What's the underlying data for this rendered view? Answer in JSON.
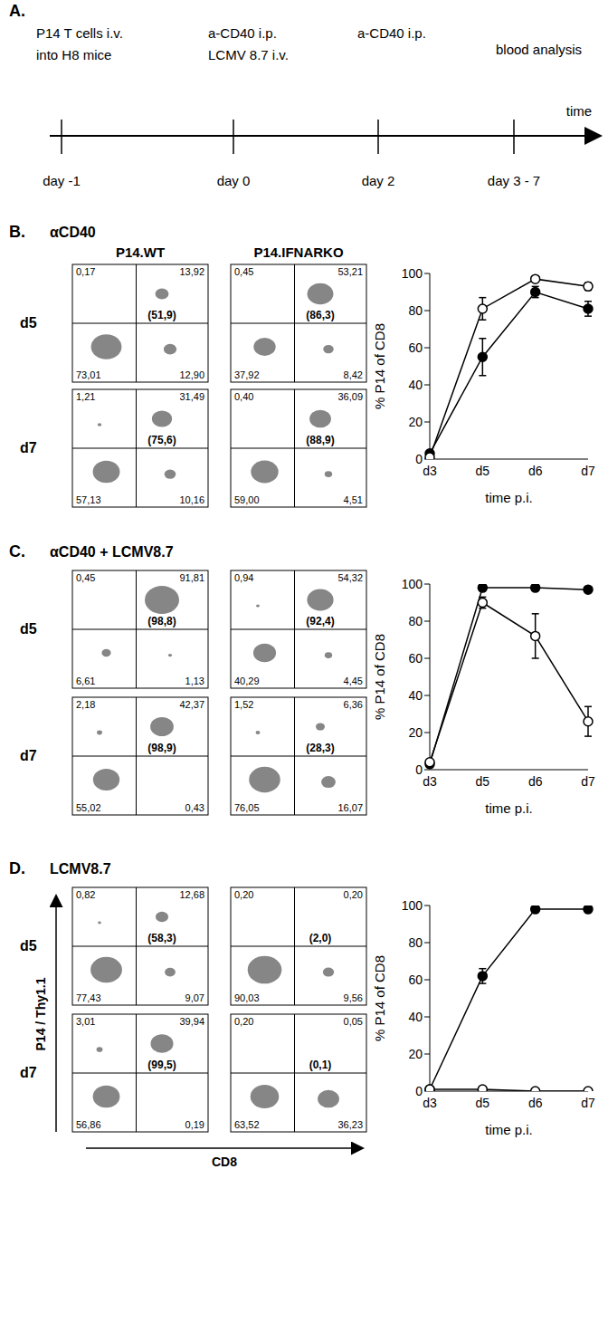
{
  "timeline": {
    "letter": "A.",
    "events": [
      {
        "lines": [
          "P14 T cells i.v.",
          "into H8 mice"
        ],
        "day": "day -1"
      },
      {
        "lines": [
          "a-CD40  i.p.",
          "LCMV 8.7 i.v."
        ],
        "day": "day 0"
      },
      {
        "lines": [
          "a-CD40 i.p."
        ],
        "day": "day 2"
      },
      {
        "lines": [
          "blood analysis"
        ],
        "day": "day 3 - 7"
      }
    ],
    "axis_label": "time"
  },
  "dot_plot_axes": {
    "y": "P14 / Thy1.1",
    "x": "CD8"
  },
  "flow_panels": [
    {
      "letter": "B.",
      "title": "αCD40",
      "column_headers": [
        "P14.WT",
        "P14.IFNARKO"
      ],
      "rows": [
        {
          "label": "d5",
          "plots": [
            {
              "quadrants": [
                {
                  "value": 0.17,
                  "label": "0,17"
                },
                {
                  "value": 13.92,
                  "label": "13,92"
                },
                {
                  "value": 73.01,
                  "label": "73,01"
                },
                {
                  "value": 12.9,
                  "label": "12,90"
                }
              ],
              "gate": {
                "value": 51.9,
                "label": "(51,9)"
              }
            },
            {
              "quadrants": [
                {
                  "value": 0.45,
                  "label": "0,45"
                },
                {
                  "value": 53.21,
                  "label": "53,21"
                },
                {
                  "value": 37.92,
                  "label": "37,92"
                },
                {
                  "value": 8.42,
                  "label": "8,42"
                }
              ],
              "gate": {
                "value": 86.3,
                "label": "(86,3)"
              }
            }
          ]
        },
        {
          "label": "d7",
          "plots": [
            {
              "quadrants": [
                {
                  "value": 1.21,
                  "label": "1,21"
                },
                {
                  "value": 31.49,
                  "label": "31,49"
                },
                {
                  "value": 57.13,
                  "label": "57,13"
                },
                {
                  "value": 10.16,
                  "label": "10,16"
                }
              ],
              "gate": {
                "value": 75.6,
                "label": "(75,6)"
              }
            },
            {
              "quadrants": [
                {
                  "value": 0.4,
                  "label": "0,40"
                },
                {
                  "value": 36.09,
                  "label": "36,09"
                },
                {
                  "value": 59.0,
                  "label": "59,00"
                },
                {
                  "value": 4.51,
                  "label": "4,51"
                }
              ],
              "gate": {
                "value": 88.9,
                "label": "(88,9)"
              }
            }
          ]
        }
      ]
    },
    {
      "letter": "C.",
      "title": "αCD40 + LCMV8.7",
      "rows": [
        {
          "label": "d5",
          "plots": [
            {
              "quadrants": [
                {
                  "value": 0.45,
                  "label": "0,45"
                },
                {
                  "value": 91.81,
                  "label": "91,81"
                },
                {
                  "value": 6.61,
                  "label": "6,61"
                },
                {
                  "value": 1.13,
                  "label": "1,13"
                }
              ],
              "gate": {
                "value": 98.8,
                "label": "(98,8)"
              }
            },
            {
              "quadrants": [
                {
                  "value": 0.94,
                  "label": "0,94"
                },
                {
                  "value": 54.32,
                  "label": "54,32"
                },
                {
                  "value": 40.29,
                  "label": "40,29"
                },
                {
                  "value": 4.45,
                  "label": "4,45"
                }
              ],
              "gate": {
                "value": 92.4,
                "label": "(92,4)"
              }
            }
          ]
        },
        {
          "label": "d7",
          "plots": [
            {
              "quadrants": [
                {
                  "value": 2.18,
                  "label": "2,18"
                },
                {
                  "value": 42.37,
                  "label": "42,37"
                },
                {
                  "value": 55.02,
                  "label": "55,02"
                },
                {
                  "value": 0.43,
                  "label": "0,43"
                }
              ],
              "gate": {
                "value": 98.9,
                "label": "(98,9)"
              }
            },
            {
              "quadrants": [
                {
                  "value": 1.52,
                  "label": "1,52"
                },
                {
                  "value": 6.36,
                  "label": "6,36"
                },
                {
                  "value": 76.05,
                  "label": "76,05"
                },
                {
                  "value": 16.07,
                  "label": "16,07"
                }
              ],
              "gate": {
                "value": 28.3,
                "label": "(28,3)"
              }
            }
          ]
        }
      ]
    },
    {
      "letter": "D.",
      "title": "LCMV8.7",
      "rows": [
        {
          "label": "d5",
          "plots": [
            {
              "quadrants": [
                {
                  "value": 0.82,
                  "label": "0,82"
                },
                {
                  "value": 12.68,
                  "label": "12,68"
                },
                {
                  "value": 77.43,
                  "label": "77,43"
                },
                {
                  "value": 9.07,
                  "label": "9,07"
                }
              ],
              "gate": {
                "value": 58.3,
                "label": "(58,3)"
              }
            },
            {
              "quadrants": [
                {
                  "value": 0.2,
                  "label": "0,20"
                },
                {
                  "value": 0.2,
                  "label": "0,20"
                },
                {
                  "value": 90.03,
                  "label": "90,03"
                },
                {
                  "value": 9.56,
                  "label": "9,56"
                }
              ],
              "gate": {
                "value": 2.0,
                "label": "(2,0)"
              }
            }
          ]
        },
        {
          "label": "d7",
          "plots": [
            {
              "quadrants": [
                {
                  "value": 3.01,
                  "label": "3,01"
                },
                {
                  "value": 39.94,
                  "label": "39,94"
                },
                {
                  "value": 56.86,
                  "label": "56,86"
                },
                {
                  "value": 0.19,
                  "label": "0,19"
                }
              ],
              "gate": {
                "value": 99.5,
                "label": "(99,5)"
              }
            },
            {
              "quadrants": [
                {
                  "value": 0.2,
                  "label": "0,20"
                },
                {
                  "value": 0.05,
                  "label": "0,05"
                },
                {
                  "value": 63.52,
                  "label": "63,52"
                },
                {
                  "value": 36.23,
                  "label": "36,23"
                }
              ],
              "gate": {
                "value": 0.1,
                "label": "(0,1)"
              }
            }
          ]
        }
      ]
    }
  ],
  "chart_data": [
    {
      "type": "line",
      "categories": [
        "d3",
        "d5",
        "d6",
        "d7"
      ],
      "xlabel": "time p.i.",
      "ylabel": "% P14 of CD8",
      "ylim": [
        0,
        100
      ],
      "yticks": [
        0,
        20,
        40,
        60,
        80,
        100
      ],
      "grid": false,
      "series": [
        {
          "name": "P14.WT",
          "color": "#000000",
          "marker": "filled circle",
          "line_style": "solid",
          "values": [
            3,
            55,
            90,
            81
          ],
          "errors": [
            0,
            10,
            3,
            4
          ]
        },
        {
          "name": "P14.IFNARKO",
          "color": "#000000",
          "marker": "open circle",
          "line_style": "solid",
          "values": [
            1,
            81,
            97,
            93
          ],
          "errors": [
            0,
            6,
            0,
            2
          ]
        }
      ]
    },
    {
      "type": "line",
      "categories": [
        "d3",
        "d5",
        "d6",
        "d7"
      ],
      "xlabel": "time p.i.",
      "ylabel": "% P14 of CD8",
      "ylim": [
        0,
        100
      ],
      "yticks": [
        0,
        20,
        40,
        60,
        80,
        100
      ],
      "grid": false,
      "series": [
        {
          "name": "P14.WT",
          "color": "#000000",
          "marker": "filled circle",
          "line_style": "solid",
          "values": [
            3,
            98,
            98,
            97
          ],
          "errors": [
            0,
            0,
            0,
            0
          ]
        },
        {
          "name": "P14.IFNARKO",
          "color": "#000000",
          "marker": "open circle",
          "line_style": "solid",
          "values": [
            4,
            90,
            72,
            26
          ],
          "errors": [
            0,
            3,
            12,
            8
          ]
        }
      ]
    },
    {
      "type": "line",
      "categories": [
        "d3",
        "d5",
        "d6",
        "d7"
      ],
      "xlabel": "time p.i.",
      "ylabel": "% P14 of CD8",
      "ylim": [
        0,
        100
      ],
      "yticks": [
        0,
        20,
        40,
        60,
        80,
        100
      ],
      "grid": false,
      "series": [
        {
          "name": "P14.WT",
          "color": "#000000",
          "marker": "filled circle",
          "line_style": "solid",
          "values": [
            1,
            62,
            98,
            98
          ],
          "errors": [
            0,
            4,
            0,
            0
          ]
        },
        {
          "name": "P14.IFNARKO",
          "color": "#000000",
          "marker": "open circle",
          "line_style": "solid",
          "values": [
            1,
            1,
            0,
            0
          ],
          "errors": [
            0,
            0,
            0,
            0
          ]
        }
      ]
    }
  ]
}
